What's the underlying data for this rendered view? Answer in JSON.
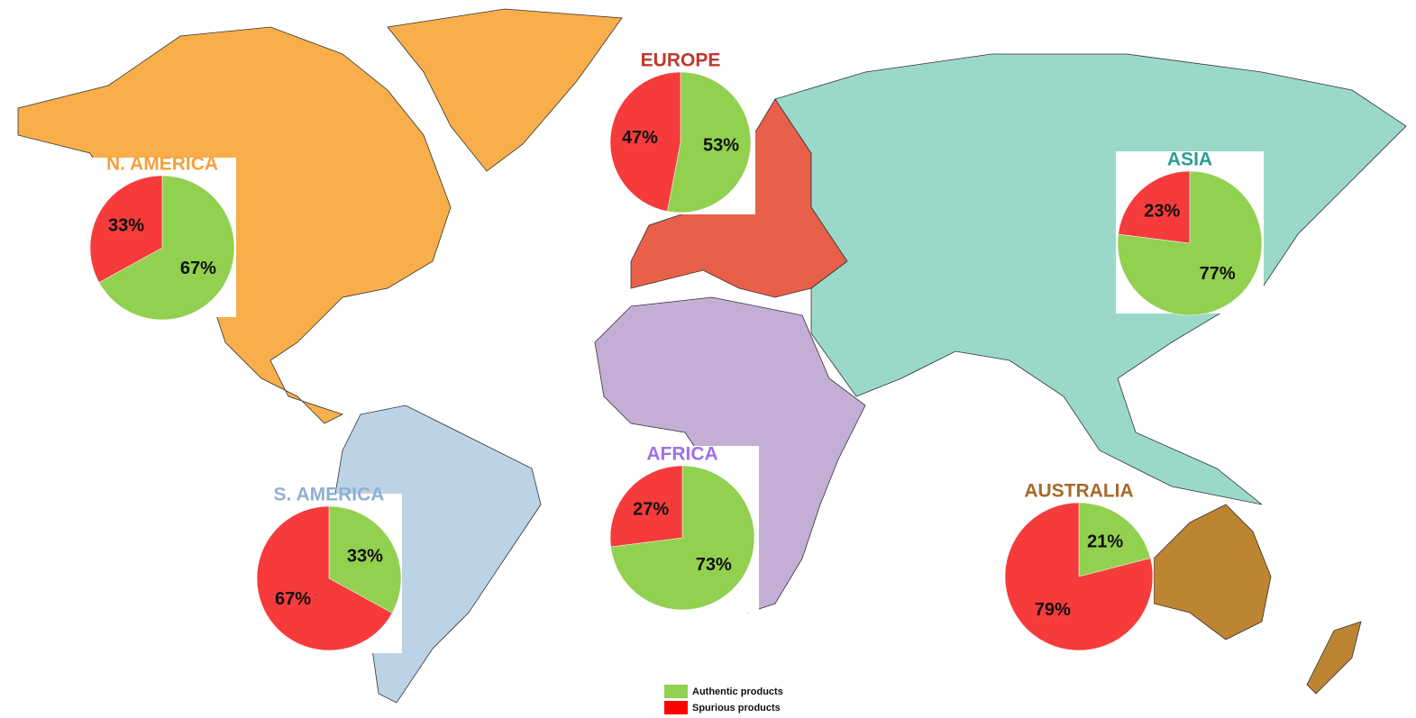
{
  "chart_data": [
    {
      "type": "pie",
      "title": "N. AMERICA",
      "title_color": "#f5a03c",
      "values": [
        67,
        33
      ],
      "value_labels": [
        "67%",
        "33%"
      ]
    },
    {
      "type": "pie",
      "title": "EUROPE",
      "title_color": "#c0392b",
      "values": [
        53,
        47
      ],
      "value_labels": [
        "53%",
        "47%"
      ]
    },
    {
      "type": "pie",
      "title": "ASIA",
      "title_color": "#2a9d8f",
      "values": [
        77,
        23
      ],
      "value_labels": [
        "77%",
        "23%"
      ]
    },
    {
      "type": "pie",
      "title": "AFRICA",
      "title_color": "#a070e8",
      "values": [
        73,
        27
      ],
      "value_labels": [
        "73%",
        "27%"
      ]
    },
    {
      "type": "pie",
      "title": "S. AMERICA",
      "title_color": "#8fb0d4",
      "values": [
        33,
        67
      ],
      "value_labels": [
        "33%",
        "67%"
      ]
    },
    {
      "type": "pie",
      "title": "AUSTRALIA",
      "title_color": "#a8682a",
      "values": [
        21,
        79
      ],
      "value_labels": [
        "21%",
        "79%"
      ]
    }
  ],
  "legend": {
    "entries": [
      {
        "label": "Authentic products",
        "color": "#92d050"
      },
      {
        "label": "Spurious products",
        "color": "#ff0000"
      }
    ]
  }
}
